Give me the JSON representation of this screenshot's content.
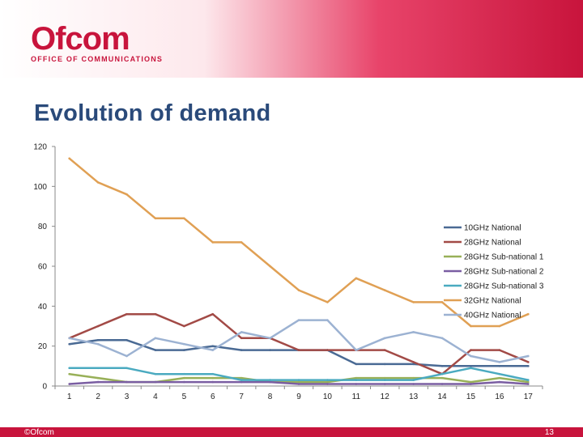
{
  "header": {
    "logo_word": "Ofcom",
    "logo_subtitle": "OFFICE OF COMMUNICATIONS"
  },
  "slide": {
    "title": "Evolution of demand"
  },
  "footer": {
    "copyright": "©Ofcom",
    "page_number": "13"
  },
  "chart_data": {
    "type": "line",
    "title": "Evolution of demand",
    "xlabel": "",
    "ylabel": "",
    "x": [
      1,
      2,
      3,
      4,
      5,
      6,
      7,
      8,
      9,
      10,
      11,
      12,
      13,
      14,
      15,
      16,
      17
    ],
    "ylim": [
      0,
      120
    ],
    "yticks": [
      0,
      20,
      40,
      60,
      80,
      100,
      120
    ],
    "grid": false,
    "legend_position": "right",
    "series": [
      {
        "name": "10GHz National",
        "color": "#4a6a94",
        "values": [
          21,
          23,
          23,
          18,
          18,
          20,
          18,
          18,
          18,
          18,
          11,
          11,
          11,
          10,
          10,
          10,
          10
        ]
      },
      {
        "name": "28GHz National",
        "color": "#a24a46",
        "values": [
          24,
          30,
          36,
          36,
          30,
          36,
          24,
          24,
          18,
          18,
          18,
          18,
          12,
          6,
          18,
          18,
          12
        ]
      },
      {
        "name": "28GHz Sub-national 1",
        "color": "#98b058",
        "values": [
          6,
          4,
          2,
          2,
          4,
          4,
          4,
          2,
          2,
          2,
          4,
          4,
          4,
          4,
          2,
          4,
          2
        ]
      },
      {
        "name": "28GHz Sub-national 2",
        "color": "#7a5ea2",
        "values": [
          1,
          2,
          2,
          2,
          2,
          2,
          2,
          2,
          1,
          1,
          1,
          1,
          1,
          1,
          1,
          2,
          1
        ]
      },
      {
        "name": "28GHz Sub-national 3",
        "color": "#4aaac0",
        "values": [
          9,
          9,
          9,
          6,
          6,
          6,
          3,
          3,
          3,
          3,
          3,
          3,
          3,
          6,
          9,
          6,
          3
        ]
      },
      {
        "name": "32GHz National",
        "color": "#e0a054",
        "values": [
          114,
          102,
          96,
          84,
          84,
          72,
          72,
          60,
          48,
          42,
          54,
          48,
          42,
          42,
          30,
          30,
          36
        ]
      },
      {
        "name": "40GHz National",
        "color": "#9cb2d2",
        "values": [
          24,
          21,
          15,
          24,
          21,
          18,
          27,
          24,
          33,
          33,
          18,
          24,
          27,
          24,
          15,
          12,
          15
        ]
      }
    ]
  }
}
